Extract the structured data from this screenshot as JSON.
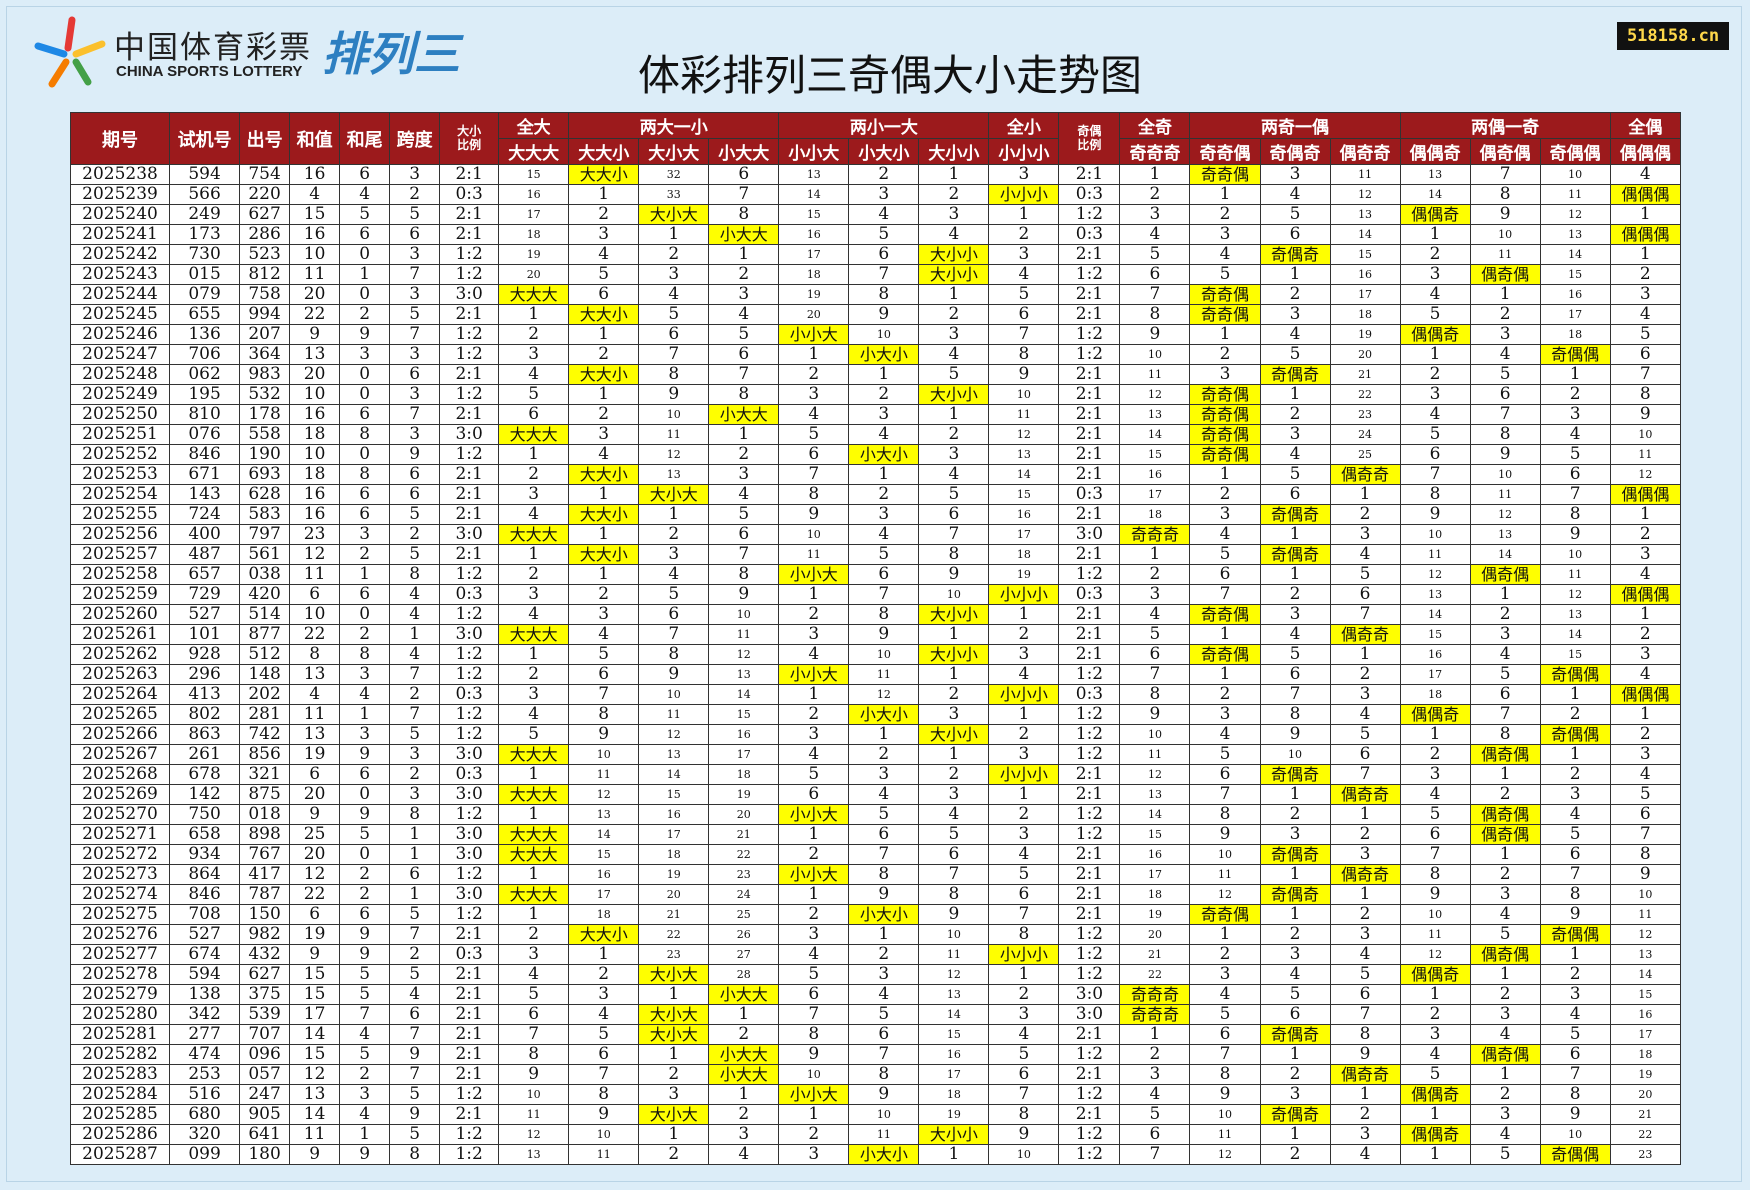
{
  "logo": {
    "cn": "中国体育彩票",
    "en": "CHINA SPORTS LOTTERY",
    "game": "排列三"
  },
  "watermark": "518158.cn",
  "title": "体彩排列三奇偶大小走势图",
  "table": {
    "header_top": [
      "期号",
      "试机号",
      "出号",
      "和值",
      "和尾",
      "跨度",
      "大小比例",
      "全大",
      "两大一小",
      "两小一大",
      "全小",
      "奇偶比例",
      "全奇",
      "两奇一偶",
      "两偶一奇",
      "全偶"
    ],
    "header_sub": [
      "大大大",
      "大大小",
      "大小大",
      "小大大",
      "小小大",
      "小大小",
      "大小小",
      "小小小",
      "奇奇奇",
      "奇奇偶",
      "奇偶奇",
      "偶奇奇",
      "偶偶奇",
      "偶奇偶",
      "奇偶偶",
      "偶偶偶"
    ],
    "rows": [
      [
        "2025238",
        "594",
        "754",
        "16",
        "6",
        "3",
        "2:1",
        15,
        "大大小",
        32,
        6,
        13,
        2,
        1,
        3,
        "2:1",
        1,
        "奇奇偶",
        3,
        11,
        13,
        7,
        10,
        4
      ],
      [
        "2025239",
        "566",
        "220",
        "4",
        "4",
        "2",
        "0:3",
        16,
        1,
        33,
        7,
        14,
        3,
        2,
        "小小小",
        "0:3",
        2,
        1,
        4,
        12,
        14,
        8,
        11,
        "偶偶偶"
      ],
      [
        "2025240",
        "249",
        "627",
        "15",
        "5",
        "5",
        "2:1",
        17,
        2,
        "大小大",
        8,
        15,
        4,
        3,
        1,
        "1:2",
        3,
        2,
        5,
        13,
        "偶偶奇",
        9,
        12,
        1
      ],
      [
        "2025241",
        "173",
        "286",
        "16",
        "6",
        "6",
        "2:1",
        18,
        3,
        1,
        "小大大",
        16,
        5,
        4,
        2,
        "0:3",
        4,
        3,
        6,
        14,
        1,
        10,
        13,
        "偶偶偶"
      ],
      [
        "2025242",
        "730",
        "523",
        "10",
        "0",
        "3",
        "1:2",
        19,
        4,
        2,
        1,
        17,
        6,
        "大小小",
        3,
        "2:1",
        5,
        4,
        "奇偶奇",
        15,
        2,
        11,
        14,
        1
      ],
      [
        "2025243",
        "015",
        "812",
        "11",
        "1",
        "7",
        "1:2",
        20,
        5,
        3,
        2,
        18,
        7,
        "大小小",
        4,
        "1:2",
        6,
        5,
        1,
        16,
        3,
        "偶奇偶",
        15,
        2
      ],
      [
        "2025244",
        "079",
        "758",
        "20",
        "0",
        "3",
        "3:0",
        "大大大",
        6,
        4,
        3,
        19,
        8,
        1,
        5,
        "2:1",
        7,
        "奇奇偶",
        2,
        17,
        4,
        1,
        16,
        3
      ],
      [
        "2025245",
        "655",
        "994",
        "22",
        "2",
        "5",
        "2:1",
        1,
        "大大小",
        5,
        4,
        20,
        9,
        2,
        6,
        "2:1",
        8,
        "奇奇偶",
        3,
        18,
        5,
        2,
        17,
        4
      ],
      [
        "2025246",
        "136",
        "207",
        "9",
        "9",
        "7",
        "1:2",
        2,
        1,
        6,
        5,
        "小小大",
        10,
        3,
        7,
        "1:2",
        9,
        1,
        4,
        19,
        "偶偶奇",
        3,
        18,
        5
      ],
      [
        "2025247",
        "706",
        "364",
        "13",
        "3",
        "3",
        "1:2",
        3,
        2,
        7,
        6,
        1,
        "小大小",
        4,
        8,
        "1:2",
        10,
        2,
        5,
        20,
        1,
        4,
        "奇偶偶",
        6
      ],
      [
        "2025248",
        "062",
        "983",
        "20",
        "0",
        "6",
        "2:1",
        4,
        "大大小",
        8,
        7,
        2,
        1,
        5,
        9,
        "2:1",
        11,
        3,
        "奇偶奇",
        21,
        2,
        5,
        1,
        7
      ],
      [
        "2025249",
        "195",
        "532",
        "10",
        "0",
        "3",
        "1:2",
        5,
        1,
        9,
        8,
        3,
        2,
        "大小小",
        10,
        "2:1",
        12,
        "奇奇偶",
        1,
        22,
        3,
        6,
        2,
        8
      ],
      [
        "2025250",
        "810",
        "178",
        "16",
        "6",
        "7",
        "2:1",
        6,
        2,
        10,
        "小大大",
        4,
        3,
        1,
        11,
        "2:1",
        13,
        "奇奇偶",
        2,
        23,
        4,
        7,
        3,
        9
      ],
      [
        "2025251",
        "076",
        "558",
        "18",
        "8",
        "3",
        "3:0",
        "大大大",
        3,
        11,
        1,
        5,
        4,
        2,
        12,
        "2:1",
        14,
        "奇奇偶",
        3,
        24,
        5,
        8,
        4,
        10
      ],
      [
        "2025252",
        "846",
        "190",
        "10",
        "0",
        "9",
        "1:2",
        1,
        4,
        12,
        2,
        6,
        "小大小",
        3,
        13,
        "2:1",
        15,
        "奇奇偶",
        4,
        25,
        6,
        9,
        5,
        11
      ],
      [
        "2025253",
        "671",
        "693",
        "18",
        "8",
        "6",
        "2:1",
        2,
        "大大小",
        13,
        3,
        7,
        1,
        4,
        14,
        "2:1",
        16,
        1,
        5,
        "偶奇奇",
        7,
        10,
        6,
        12
      ],
      [
        "2025254",
        "143",
        "628",
        "16",
        "6",
        "6",
        "2:1",
        3,
        1,
        "大小大",
        4,
        8,
        2,
        5,
        15,
        "0:3",
        17,
        2,
        6,
        1,
        8,
        11,
        7,
        "偶偶偶"
      ],
      [
        "2025255",
        "724",
        "583",
        "16",
        "6",
        "5",
        "2:1",
        4,
        "大大小",
        1,
        5,
        9,
        3,
        6,
        16,
        "2:1",
        18,
        3,
        "奇偶奇",
        2,
        9,
        12,
        8,
        1
      ],
      [
        "2025256",
        "400",
        "797",
        "23",
        "3",
        "2",
        "3:0",
        "大大大",
        1,
        2,
        6,
        10,
        4,
        7,
        17,
        "3:0",
        "奇奇奇",
        4,
        1,
        3,
        10,
        13,
        9,
        2
      ],
      [
        "2025257",
        "487",
        "561",
        "12",
        "2",
        "5",
        "2:1",
        1,
        "大大小",
        3,
        7,
        11,
        5,
        8,
        18,
        "2:1",
        1,
        5,
        "奇偶奇",
        4,
        11,
        14,
        10,
        3
      ],
      [
        "2025258",
        "657",
        "038",
        "11",
        "1",
        "8",
        "1:2",
        2,
        1,
        4,
        8,
        "小小大",
        6,
        9,
        19,
        "1:2",
        2,
        6,
        1,
        5,
        12,
        "偶奇偶",
        11,
        4
      ],
      [
        "2025259",
        "729",
        "420",
        "6",
        "6",
        "4",
        "0:3",
        3,
        2,
        5,
        9,
        1,
        7,
        10,
        "小小小",
        "0:3",
        3,
        7,
        2,
        6,
        13,
        1,
        12,
        "偶偶偶"
      ],
      [
        "2025260",
        "527",
        "514",
        "10",
        "0",
        "4",
        "1:2",
        4,
        3,
        6,
        10,
        2,
        8,
        "大小小",
        1,
        "2:1",
        4,
        "奇奇偶",
        3,
        7,
        14,
        2,
        13,
        1
      ],
      [
        "2025261",
        "101",
        "877",
        "22",
        "2",
        "1",
        "3:0",
        "大大大",
        4,
        7,
        11,
        3,
        9,
        1,
        2,
        "2:1",
        5,
        1,
        4,
        "偶奇奇",
        15,
        3,
        14,
        2
      ],
      [
        "2025262",
        "928",
        "512",
        "8",
        "8",
        "4",
        "1:2",
        1,
        5,
        8,
        12,
        4,
        10,
        "大小小",
        3,
        "2:1",
        6,
        "奇奇偶",
        5,
        1,
        16,
        4,
        15,
        3
      ],
      [
        "2025263",
        "296",
        "148",
        "13",
        "3",
        "7",
        "1:2",
        2,
        6,
        9,
        13,
        "小小大",
        11,
        1,
        4,
        "1:2",
        7,
        1,
        6,
        2,
        17,
        5,
        "奇偶偶",
        4
      ],
      [
        "2025264",
        "413",
        "202",
        "4",
        "4",
        "2",
        "0:3",
        3,
        7,
        10,
        14,
        1,
        12,
        2,
        "小小小",
        "0:3",
        8,
        2,
        7,
        3,
        18,
        6,
        1,
        "偶偶偶"
      ],
      [
        "2025265",
        "802",
        "281",
        "11",
        "1",
        "7",
        "1:2",
        4,
        8,
        11,
        15,
        2,
        "小大小",
        3,
        1,
        "1:2",
        9,
        3,
        8,
        4,
        "偶偶奇",
        7,
        2,
        1
      ],
      [
        "2025266",
        "863",
        "742",
        "13",
        "3",
        "5",
        "1:2",
        5,
        9,
        12,
        16,
        3,
        1,
        "大小小",
        2,
        "1:2",
        10,
        4,
        9,
        5,
        1,
        8,
        "奇偶偶",
        2
      ],
      [
        "2025267",
        "261",
        "856",
        "19",
        "9",
        "3",
        "3:0",
        "大大大",
        10,
        13,
        17,
        4,
        2,
        1,
        3,
        "1:2",
        11,
        5,
        10,
        6,
        2,
        "偶奇偶",
        1,
        3
      ],
      [
        "2025268",
        "678",
        "321",
        "6",
        "6",
        "2",
        "0:3",
        1,
        11,
        14,
        18,
        5,
        3,
        2,
        "小小小",
        "2:1",
        12,
        6,
        "奇偶奇",
        7,
        3,
        1,
        2,
        4
      ],
      [
        "2025269",
        "142",
        "875",
        "20",
        "0",
        "3",
        "3:0",
        "大大大",
        12,
        15,
        19,
        6,
        4,
        3,
        1,
        "2:1",
        13,
        7,
        1,
        "偶奇奇",
        4,
        2,
        3,
        5
      ],
      [
        "2025270",
        "750",
        "018",
        "9",
        "9",
        "8",
        "1:2",
        1,
        13,
        16,
        20,
        "小小大",
        5,
        4,
        2,
        "1:2",
        14,
        8,
        2,
        1,
        5,
        "偶奇偶",
        4,
        6
      ],
      [
        "2025271",
        "658",
        "898",
        "25",
        "5",
        "1",
        "3:0",
        "大大大",
        14,
        17,
        21,
        1,
        6,
        5,
        3,
        "1:2",
        15,
        9,
        3,
        2,
        6,
        "偶奇偶",
        5,
        7
      ],
      [
        "2025272",
        "934",
        "767",
        "20",
        "0",
        "1",
        "3:0",
        "大大大",
        15,
        18,
        22,
        2,
        7,
        6,
        4,
        "2:1",
        16,
        10,
        "奇偶奇",
        3,
        7,
        1,
        6,
        8
      ],
      [
        "2025273",
        "864",
        "417",
        "12",
        "2",
        "6",
        "1:2",
        1,
        16,
        19,
        23,
        "小小大",
        8,
        7,
        5,
        "2:1",
        17,
        11,
        1,
        "偶奇奇",
        8,
        2,
        7,
        9
      ],
      [
        "2025274",
        "846",
        "787",
        "22",
        "2",
        "1",
        "3:0",
        "大大大",
        17,
        20,
        24,
        1,
        9,
        8,
        6,
        "2:1",
        18,
        12,
        "奇偶奇",
        1,
        9,
        3,
        8,
        10
      ],
      [
        "2025275",
        "708",
        "150",
        "6",
        "6",
        "5",
        "1:2",
        1,
        18,
        21,
        25,
        2,
        "小大小",
        9,
        7,
        "2:1",
        19,
        "奇奇偶",
        1,
        2,
        10,
        4,
        9,
        11
      ],
      [
        "2025276",
        "527",
        "982",
        "19",
        "9",
        "7",
        "2:1",
        2,
        "大大小",
        22,
        26,
        3,
        1,
        10,
        8,
        "1:2",
        20,
        1,
        2,
        3,
        11,
        5,
        "奇偶偶",
        12
      ],
      [
        "2025277",
        "674",
        "432",
        "9",
        "9",
        "2",
        "0:3",
        3,
        1,
        23,
        27,
        4,
        2,
        11,
        "小小小",
        "1:2",
        21,
        2,
        3,
        4,
        12,
        "偶奇偶",
        1,
        13
      ],
      [
        "2025278",
        "594",
        "627",
        "15",
        "5",
        "5",
        "2:1",
        4,
        2,
        "大小大",
        28,
        5,
        3,
        12,
        1,
        "1:2",
        22,
        3,
        4,
        5,
        "偶偶奇",
        1,
        2,
        14
      ],
      [
        "2025279",
        "138",
        "375",
        "15",
        "5",
        "4",
        "2:1",
        5,
        3,
        1,
        "小大大",
        6,
        4,
        13,
        2,
        "3:0",
        "奇奇奇",
        4,
        5,
        6,
        1,
        2,
        3,
        15
      ],
      [
        "2025280",
        "342",
        "539",
        "17",
        "7",
        "6",
        "2:1",
        6,
        4,
        "大小大",
        1,
        7,
        5,
        14,
        3,
        "3:0",
        "奇奇奇",
        5,
        6,
        7,
        2,
        3,
        4,
        16
      ],
      [
        "2025281",
        "277",
        "707",
        "14",
        "4",
        "7",
        "2:1",
        7,
        5,
        "大小大",
        2,
        8,
        6,
        15,
        4,
        "2:1",
        1,
        6,
        "奇偶奇",
        8,
        3,
        4,
        5,
        17
      ],
      [
        "2025282",
        "474",
        "096",
        "15",
        "5",
        "9",
        "2:1",
        8,
        6,
        1,
        "小大大",
        9,
        7,
        16,
        5,
        "1:2",
        2,
        7,
        1,
        9,
        4,
        "偶奇偶",
        6,
        18
      ],
      [
        "2025283",
        "253",
        "057",
        "12",
        "2",
        "7",
        "2:1",
        9,
        7,
        2,
        "小大大",
        10,
        8,
        17,
        6,
        "2:1",
        3,
        8,
        2,
        "偶奇奇",
        5,
        1,
        7,
        19
      ],
      [
        "2025284",
        "516",
        "247",
        "13",
        "3",
        "5",
        "1:2",
        10,
        8,
        3,
        1,
        "小小大",
        9,
        18,
        7,
        "1:2",
        4,
        9,
        3,
        1,
        "偶偶奇",
        2,
        8,
        20
      ],
      [
        "2025285",
        "680",
        "905",
        "14",
        "4",
        "9",
        "2:1",
        11,
        9,
        "大小大",
        2,
        1,
        10,
        19,
        8,
        "2:1",
        5,
        10,
        "奇偶奇",
        2,
        1,
        3,
        9,
        21
      ],
      [
        "2025286",
        "320",
        "641",
        "11",
        "1",
        "5",
        "1:2",
        12,
        10,
        1,
        3,
        2,
        11,
        "大小小",
        9,
        "1:2",
        6,
        11,
        1,
        3,
        "偶偶奇",
        4,
        10,
        22
      ],
      [
        "2025287",
        "099",
        "180",
        "9",
        "9",
        "8",
        "1:2",
        13,
        11,
        2,
        4,
        3,
        "小大小",
        1,
        10,
        "1:2",
        7,
        12,
        2,
        4,
        1,
        5,
        "奇偶偶",
        23
      ]
    ]
  }
}
